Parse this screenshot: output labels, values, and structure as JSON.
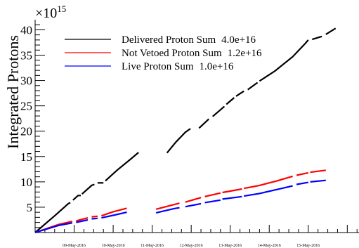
{
  "chart_data": {
    "type": "line",
    "title": "",
    "ylabel": "Integrated Protons",
    "xlabel": "",
    "y_multiplier": {
      "base": "×10",
      "exponent": "15"
    },
    "x_range_days": [
      8.0,
      16.3
    ],
    "ylim": [
      0,
      42
    ],
    "y_ticks": [
      {
        "value": 5,
        "label": "5"
      },
      {
        "value": 10,
        "label": "10"
      },
      {
        "value": 15,
        "label": "15"
      },
      {
        "value": 20,
        "label": "20"
      },
      {
        "value": 25,
        "label": "25"
      },
      {
        "value": 30,
        "label": "30"
      },
      {
        "value": 35,
        "label": "35"
      },
      {
        "value": 40,
        "label": "40"
      }
    ],
    "x_ticks": [
      {
        "day": 9,
        "label": "09-May-2016"
      },
      {
        "day": 10,
        "label": "10-May-2016"
      },
      {
        "day": 11,
        "label": "11-May-2016"
      },
      {
        "day": 12,
        "label": "12-May-2016"
      },
      {
        "day": 13,
        "label": "13-May-2016"
      },
      {
        "day": 14,
        "label": "14-May-2016"
      },
      {
        "day": 15,
        "label": "15-May-2016"
      }
    ],
    "legend_position": "top-left",
    "series": [
      {
        "name": "Delivered Proton Sum",
        "total": "4.0e+16",
        "color": "#000000",
        "segments": [
          [
            [
              8.0,
              0.0
            ],
            [
              8.5,
              3.3
            ],
            [
              8.85,
              5.7
            ],
            [
              8.9,
              5.9
            ]
          ],
          [
            [
              8.97,
              6.4
            ],
            [
              9.1,
              7.3
            ],
            [
              9.17,
              7.3
            ]
          ],
          [
            [
              9.2,
              7.6
            ],
            [
              9.45,
              9.3
            ],
            [
              9.52,
              9.5
            ]
          ],
          [
            [
              9.6,
              9.8
            ],
            [
              9.75,
              9.8
            ]
          ],
          [
            [
              9.8,
              10.2
            ],
            [
              10.1,
              12.3
            ],
            [
              10.45,
              14.5
            ],
            [
              10.65,
              15.8
            ]
          ],
          [
            [
              11.38,
              15.7
            ],
            [
              11.6,
              17.8
            ],
            [
              11.85,
              19.8
            ],
            [
              11.98,
              20.5
            ]
          ],
          [
            [
              12.2,
              20.6
            ],
            [
              12.45,
              22.4
            ]
          ],
          [
            [
              12.55,
              22.9
            ],
            [
              12.85,
              24.9
            ]
          ],
          [
            [
              12.9,
              25.3
            ],
            [
              13.1,
              26.6
            ]
          ],
          [
            [
              13.15,
              26.9
            ],
            [
              13.35,
              27.9
            ]
          ],
          [
            [
              13.45,
              28.2
            ],
            [
              13.7,
              29.6
            ]
          ],
          [
            [
              13.75,
              29.9
            ],
            [
              14.15,
              31.9
            ],
            [
              14.6,
              34.7
            ],
            [
              14.9,
              37.1
            ],
            [
              15.0,
              38.0
            ]
          ],
          [
            [
              15.1,
              38.1
            ],
            [
              15.35,
              38.7
            ]
          ],
          [
            [
              15.45,
              39.1
            ],
            [
              15.7,
              40.3
            ]
          ]
        ]
      },
      {
        "name": "Not Vetoed Proton Sum",
        "total": "1.2e+16",
        "color": "#ff0000",
        "segments": [
          [
            [
              8.0,
              0.0
            ],
            [
              8.6,
              1.6
            ],
            [
              8.95,
              2.2
            ]
          ],
          [
            [
              9.05,
              2.3
            ],
            [
              9.35,
              2.9
            ]
          ],
          [
            [
              9.45,
              3.1
            ],
            [
              9.6,
              3.2
            ]
          ],
          [
            [
              9.7,
              3.3
            ],
            [
              10.0,
              4.1
            ],
            [
              10.35,
              4.8
            ]
          ],
          [
            [
              11.1,
              4.6
            ],
            [
              11.55,
              5.5
            ],
            [
              11.7,
              5.8
            ]
          ],
          [
            [
              11.85,
              6.0
            ],
            [
              12.25,
              6.9
            ]
          ],
          [
            [
              12.35,
              7.1
            ],
            [
              12.75,
              7.8
            ]
          ],
          [
            [
              12.8,
              7.9
            ],
            [
              13.3,
              8.6
            ]
          ],
          [
            [
              13.35,
              8.7
            ],
            [
              13.75,
              9.3
            ],
            [
              14.2,
              10.2
            ],
            [
              14.6,
              11.1
            ]
          ],
          [
            [
              14.7,
              11.3
            ],
            [
              15.0,
              11.8
            ]
          ],
          [
            [
              15.05,
              11.9
            ],
            [
              15.45,
              12.3
            ]
          ]
        ]
      },
      {
        "name": "Live Proton Sum",
        "total": "1.0e+16",
        "color": "#0000ff",
        "segments": [
          [
            [
              8.0,
              0.0
            ],
            [
              8.6,
              1.4
            ],
            [
              8.95,
              1.9
            ]
          ],
          [
            [
              9.05,
              2.0
            ],
            [
              9.35,
              2.5
            ]
          ],
          [
            [
              9.45,
              2.7
            ],
            [
              9.6,
              2.8
            ]
          ],
          [
            [
              9.7,
              2.9
            ],
            [
              10.0,
              3.4
            ],
            [
              10.35,
              4.0
            ]
          ],
          [
            [
              11.1,
              3.9
            ],
            [
              11.55,
              4.7
            ],
            [
              11.7,
              4.9
            ]
          ],
          [
            [
              11.85,
              5.1
            ],
            [
              12.25,
              5.7
            ]
          ],
          [
            [
              12.35,
              5.9
            ],
            [
              12.75,
              6.4
            ]
          ],
          [
            [
              12.8,
              6.6
            ],
            [
              13.3,
              7.1
            ]
          ],
          [
            [
              13.35,
              7.2
            ],
            [
              13.75,
              7.7
            ],
            [
              14.2,
              8.5
            ],
            [
              14.6,
              9.2
            ]
          ],
          [
            [
              14.7,
              9.5
            ],
            [
              15.0,
              9.9
            ]
          ],
          [
            [
              15.05,
              10.0
            ],
            [
              15.45,
              10.3
            ]
          ]
        ]
      }
    ]
  }
}
